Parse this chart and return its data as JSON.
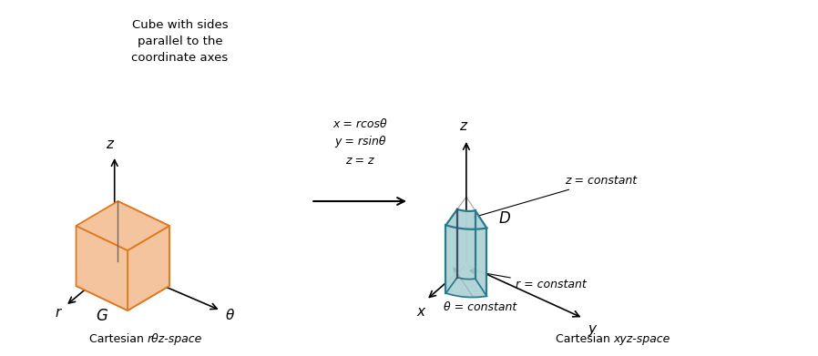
{
  "fig_width": 8.98,
  "fig_height": 3.91,
  "bg_color": "#ffffff",
  "left_title": "Cube with sides\nparallel to the\ncoordinate axes",
  "left_label": "G",
  "left_bottom_label_plain": "Cartesian ",
  "left_bottom_label_italic": "rθz-space",
  "arrow_text_lines": [
    "x = rcosθ",
    "y = rsinθ",
    "z = z"
  ],
  "right_label_D": "D",
  "right_label_z": "z = constant",
  "right_label_theta": "θ = constant",
  "right_label_r": "r = constant",
  "right_bottom_label_plain": "Cartesian ",
  "right_bottom_label_italic": "xyz-space",
  "cube_face_color": "#f4c49e",
  "cube_edge_color": "#e07820",
  "cube_edge_blue": "#546e7a",
  "annulus_face_color": "#b2d5d8",
  "annulus_edge_color": "#2a7a8a",
  "annulus_edge_blue": "#3a5068",
  "axis_color": "#000000",
  "text_color": "#000000",
  "guide_line_color": "#b0b0b0"
}
